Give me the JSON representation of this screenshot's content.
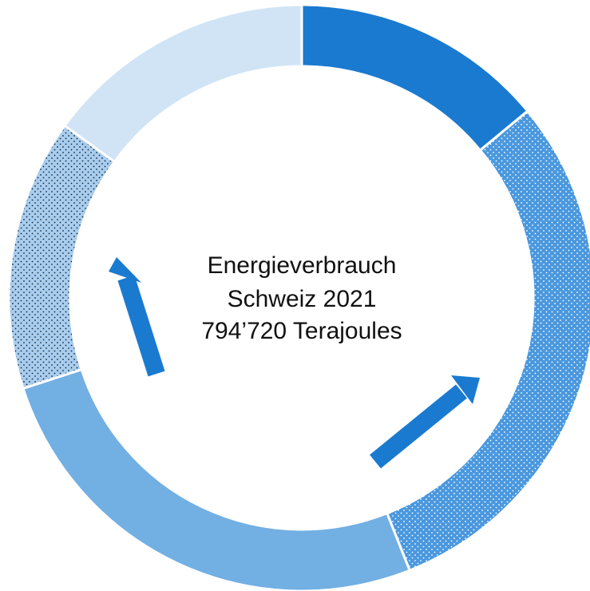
{
  "chart_data": {
    "type": "donut",
    "title": [
      "Energieverbrauch",
      "Schweiz 2021",
      "794’720 Terajoules"
    ],
    "values": [
      14,
      30,
      26,
      15,
      15
    ],
    "colors": [
      "#1a7ad0",
      "#4a98de",
      "#72afe3",
      "#a8cdee",
      "#d0e4f5"
    ],
    "patterns": [
      null,
      "dots-light",
      null,
      "dots-dark",
      null
    ]
  }
}
